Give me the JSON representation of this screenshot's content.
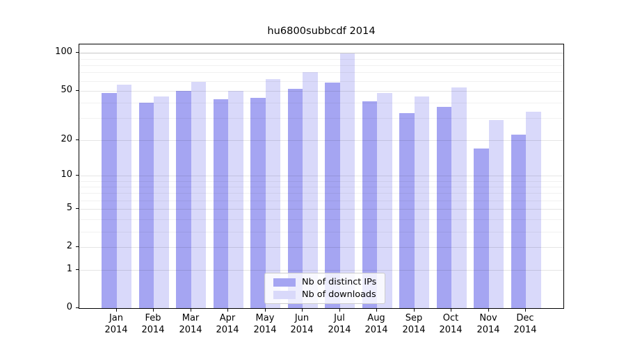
{
  "title": "hu6800subbcdf 2014",
  "legend": {
    "items": [
      {
        "label": "Nb of distinct IPs",
        "color": "#a5a5f2"
      },
      {
        "label": "Nb of downloads",
        "color": "#d9d9fa"
      }
    ]
  },
  "y_axis": {
    "tick_labels": [
      "100",
      "50",
      "20",
      "10",
      "5",
      "2",
      "1",
      "0"
    ],
    "tick_values": [
      100,
      50,
      20,
      10,
      5,
      2,
      1,
      0
    ],
    "minor_values": [
      3,
      4,
      6,
      7,
      8,
      9,
      30,
      40,
      60,
      70,
      80,
      90
    ],
    "scale": "log1p"
  },
  "x_axis": {
    "months": [
      "Jan",
      "Feb",
      "Mar",
      "Apr",
      "May",
      "Jun",
      "Jul",
      "Aug",
      "Sep",
      "Oct",
      "Nov",
      "Dec"
    ],
    "year": "2014"
  },
  "chart_data": {
    "type": "bar",
    "title": "hu6800subbcdf 2014",
    "categories": [
      "Jan 2014",
      "Feb 2014",
      "Mar 2014",
      "Apr 2014",
      "May 2014",
      "Jun 2014",
      "Jul 2014",
      "Aug 2014",
      "Sep 2014",
      "Oct 2014",
      "Nov 2014",
      "Dec 2014"
    ],
    "series": [
      {
        "name": "Nb of distinct IPs",
        "color": "#a5a5f2",
        "values": [
          48,
          40,
          50,
          43,
          44,
          52,
          58,
          41,
          33,
          37,
          17,
          22
        ]
      },
      {
        "name": "Nb of downloads",
        "color": "#d9d9fa",
        "values": [
          56,
          45,
          59,
          50,
          62,
          70,
          99,
          48,
          45,
          53,
          29,
          34
        ]
      }
    ],
    "yscale": "log1p",
    "ylim": [
      0,
      120
    ],
    "yticks": [
      0,
      1,
      2,
      5,
      10,
      20,
      50,
      100
    ],
    "xlabel": "",
    "ylabel": "",
    "grid": "horizontal",
    "legend_position": "lower center"
  }
}
